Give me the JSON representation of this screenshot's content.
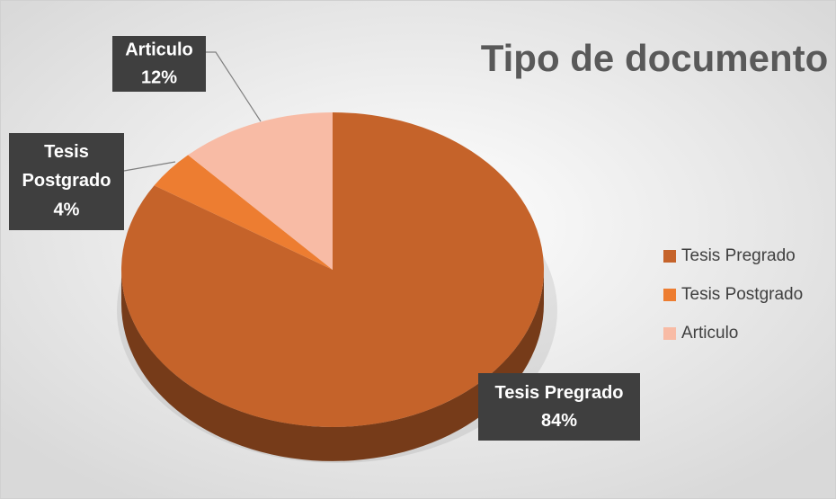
{
  "chart_data": {
    "type": "pie",
    "title": "Tipo de documento",
    "categories": [
      "Tesis Pregrado",
      "Tesis Postgrado",
      "Articulo"
    ],
    "values": [
      84,
      4,
      12
    ],
    "value_labels": [
      "84%",
      "4%",
      "12%"
    ],
    "colors": [
      "#c5632a",
      "#ed7d31",
      "#f8bba5"
    ],
    "legend": "right"
  }
}
